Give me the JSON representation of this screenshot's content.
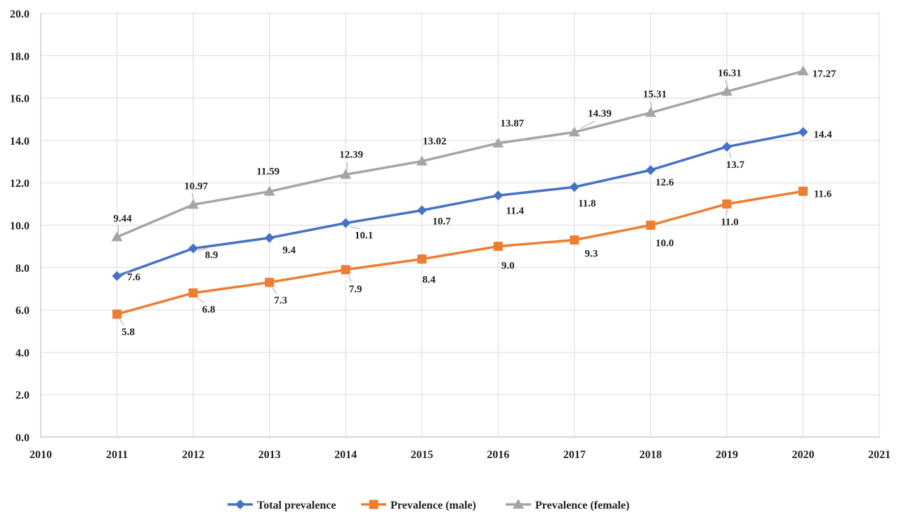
{
  "chart_data": {
    "type": "line",
    "title": "",
    "xlabel": "",
    "ylabel": "",
    "xlim": [
      2010,
      2021
    ],
    "ylim": [
      0,
      20
    ],
    "xticks": [
      2010,
      2011,
      2012,
      2013,
      2014,
      2015,
      2016,
      2017,
      2018,
      2019,
      2020,
      2021
    ],
    "xtick_labels": [
      "2010",
      "2011",
      "2012",
      "2013",
      "2014",
      "2015",
      "2016",
      "2017",
      "2018",
      "2019",
      "2020",
      "2021"
    ],
    "yticks": [
      0,
      2,
      4,
      6,
      8,
      10,
      12,
      14,
      16,
      18,
      20
    ],
    "ytick_labels": [
      "0.0",
      "2.0",
      "4.0",
      "6.0",
      "8.0",
      "10.0",
      "12.0",
      "14.0",
      "16.0",
      "18.0",
      "20.0"
    ],
    "grid": true,
    "legend_position": "bottom",
    "x": [
      2011,
      2012,
      2013,
      2014,
      2015,
      2016,
      2017,
      2018,
      2019,
      2020
    ],
    "series": [
      {
        "name": "Total prevalence",
        "color": "#4472c4",
        "marker": "diamond",
        "values": [
          7.6,
          8.9,
          9.4,
          10.1,
          10.7,
          11.4,
          11.8,
          12.6,
          13.7,
          14.4
        ],
        "labels": [
          "7.6",
          "8.9",
          "9.4",
          "10.1",
          "10.7",
          "11.4",
          "11.8",
          "12.6",
          "13.7",
          "14.4"
        ]
      },
      {
        "name": "Prevalence (male)",
        "color": "#ed7d31",
        "marker": "square",
        "values": [
          5.8,
          6.8,
          7.3,
          7.9,
          8.4,
          9.0,
          9.3,
          10.0,
          11.0,
          11.6
        ],
        "labels": [
          "5.8",
          "6.8",
          "7.3",
          "7.9",
          "8.4",
          "9.0",
          "9.3",
          "10.0",
          "11.0",
          "11.6"
        ]
      },
      {
        "name": "Prevalence (female)",
        "color": "#a5a5a5",
        "marker": "triangle",
        "values": [
          9.44,
          10.97,
          11.59,
          12.39,
          13.02,
          13.87,
          14.39,
          15.31,
          16.31,
          17.27
        ],
        "labels": [
          "9.44",
          "10.97",
          "11.59",
          "12.39",
          "13.02",
          "13.87",
          "14.39",
          "15.31",
          "16.31",
          "17.27"
        ]
      }
    ]
  }
}
